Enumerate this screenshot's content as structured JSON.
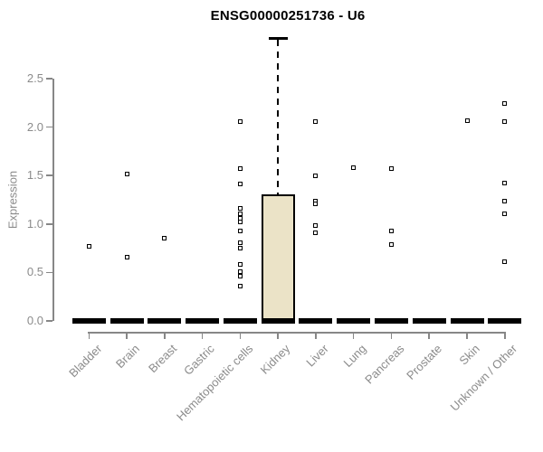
{
  "title": "ENSG00000251736 - U6",
  "chart_data": {
    "type": "boxplot",
    "title": "ENSG00000251736 - U6",
    "xlabel": "",
    "ylabel": "Expression",
    "ylim": [
      0,
      2.95
    ],
    "yticks": [
      0,
      0.5,
      1,
      1.5,
      2,
      2.5
    ],
    "grid": false,
    "legend": "none",
    "categories": [
      "Bladder",
      "Brain",
      "Breast",
      "Gastric",
      "Hematopoietic cells",
      "Kidney",
      "Liver",
      "Lung",
      "Pancreas",
      "Prostate",
      "Skin",
      "Unknown / Other"
    ],
    "series": [
      {
        "name": "Bladder",
        "median": 0,
        "q1": 0,
        "q3": 0,
        "whisker_low": 0,
        "whisker_high": 0,
        "outliers": [
          0.77
        ]
      },
      {
        "name": "Brain",
        "median": 0,
        "q1": 0,
        "q3": 0,
        "whisker_low": 0,
        "whisker_high": 0,
        "outliers": [
          1.52,
          0.66
        ]
      },
      {
        "name": "Breast",
        "median": 0,
        "q1": 0,
        "q3": 0,
        "whisker_low": 0,
        "whisker_high": 0,
        "outliers": [
          0.85
        ]
      },
      {
        "name": "Gastric",
        "median": 0,
        "q1": 0,
        "q3": 0,
        "whisker_low": 0,
        "whisker_high": 0,
        "outliers": []
      },
      {
        "name": "Hematopoietic cells",
        "median": 0,
        "q1": 0,
        "q3": 0,
        "whisker_low": 0,
        "whisker_high": 0,
        "outliers": [
          2.06,
          1.57,
          1.41,
          1.16,
          1.11,
          1.06,
          1.02,
          0.93,
          0.81,
          0.75,
          0.58,
          0.51,
          0.46,
          0.36
        ]
      },
      {
        "name": "Kidney",
        "median": 0,
        "q1": 0,
        "q3": 1.31,
        "whisker_low": 0,
        "whisker_high": 2.92,
        "outliers": []
      },
      {
        "name": "Liver",
        "median": 0,
        "q1": 0,
        "q3": 0,
        "whisker_low": 0,
        "whisker_high": 0,
        "outliers": [
          2.06,
          1.5,
          1.24,
          1.21,
          0.98,
          0.91
        ]
      },
      {
        "name": "Lung",
        "median": 0,
        "q1": 0,
        "q3": 0,
        "whisker_low": 0,
        "whisker_high": 0,
        "outliers": [
          1.58
        ]
      },
      {
        "name": "Pancreas",
        "median": 0,
        "q1": 0,
        "q3": 0,
        "whisker_low": 0,
        "whisker_high": 0,
        "outliers": [
          1.57,
          0.93,
          0.79
        ]
      },
      {
        "name": "Prostate",
        "median": 0,
        "q1": 0,
        "q3": 0,
        "whisker_low": 0,
        "whisker_high": 0,
        "outliers": []
      },
      {
        "name": "Skin",
        "median": 0,
        "q1": 0,
        "q3": 0,
        "whisker_low": 0,
        "whisker_high": 0,
        "outliers": [
          2.07
        ]
      },
      {
        "name": "Unknown / Other",
        "median": 0,
        "q1": 0,
        "q3": 0,
        "whisker_low": 0,
        "whisker_high": 0,
        "outliers": [
          2.24,
          2.06,
          1.42,
          1.24,
          1.11,
          0.61
        ]
      }
    ],
    "colors": {
      "box_fill": "#ebe3c7",
      "box_border": "#000000",
      "median": "#000000",
      "axis": "#878787",
      "tick_label": "#8b8b8b",
      "title": "#000000",
      "background": "#ffffff"
    }
  }
}
